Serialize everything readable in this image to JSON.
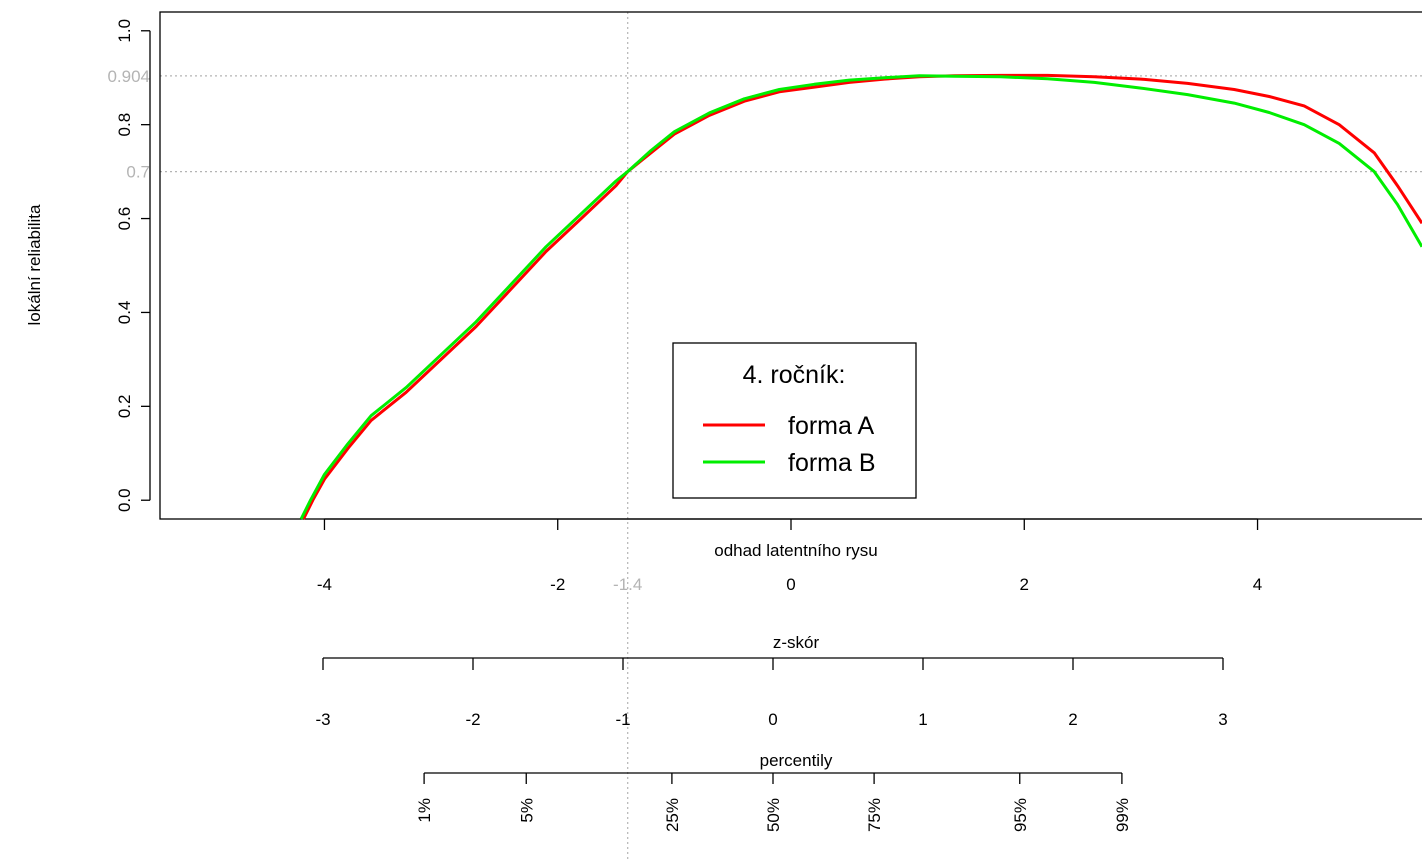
{
  "chart_data": {
    "type": "line",
    "title": "",
    "xlabel": "odhad latentního rysu",
    "ylabel": "lokální reliabilita",
    "xlim": [
      -5.41,
      5.41
    ],
    "ylim": [
      -0.04,
      1.04
    ],
    "x_ticks": [
      "-4",
      "-2",
      "0",
      "2",
      "4"
    ],
    "y_ticks": [
      "0.0",
      "0.2",
      "0.4",
      "0.6",
      "0.8",
      "1.0"
    ],
    "reference_lines": {
      "h": [
        {
          "value": 0.904,
          "label": "0.904"
        },
        {
          "value": 0.7,
          "label": "0.7"
        }
      ],
      "v": [
        {
          "value": -1.4,
          "label": "-1.4"
        }
      ]
    },
    "legend": {
      "title": "4. ročník:",
      "position": "bottom-center",
      "entries": [
        "forma A",
        "forma B"
      ]
    },
    "series": [
      {
        "name": "forma A",
        "color": "#ff0000",
        "points": [
          [
            -4.18,
            -0.04
          ],
          [
            -4.1,
            0.0
          ],
          [
            -4.0,
            0.045
          ],
          [
            -3.8,
            0.11
          ],
          [
            -3.6,
            0.17
          ],
          [
            -3.3,
            0.23
          ],
          [
            -3.0,
            0.3
          ],
          [
            -2.7,
            0.37
          ],
          [
            -2.4,
            0.45
          ],
          [
            -2.1,
            0.53
          ],
          [
            -1.8,
            0.6
          ],
          [
            -1.5,
            0.67
          ],
          [
            -1.4,
            0.7
          ],
          [
            -1.2,
            0.74
          ],
          [
            -1.0,
            0.78
          ],
          [
            -0.7,
            0.82
          ],
          [
            -0.4,
            0.85
          ],
          [
            -0.1,
            0.87
          ],
          [
            0.2,
            0.88
          ],
          [
            0.5,
            0.89
          ],
          [
            0.8,
            0.897
          ],
          [
            1.1,
            0.902
          ],
          [
            1.4,
            0.904
          ],
          [
            1.8,
            0.905
          ],
          [
            2.2,
            0.905
          ],
          [
            2.6,
            0.902
          ],
          [
            3.0,
            0.897
          ],
          [
            3.4,
            0.888
          ],
          [
            3.8,
            0.875
          ],
          [
            4.1,
            0.86
          ],
          [
            4.4,
            0.84
          ],
          [
            4.7,
            0.8
          ],
          [
            5.0,
            0.74
          ],
          [
            5.2,
            0.67
          ],
          [
            5.41,
            0.59
          ]
        ]
      },
      {
        "name": "forma B",
        "color": "#00ee00",
        "points": [
          [
            -4.2,
            -0.04
          ],
          [
            -4.12,
            0.0
          ],
          [
            -4.0,
            0.055
          ],
          [
            -3.8,
            0.12
          ],
          [
            -3.6,
            0.18
          ],
          [
            -3.3,
            0.24
          ],
          [
            -3.0,
            0.31
          ],
          [
            -2.7,
            0.38
          ],
          [
            -2.4,
            0.46
          ],
          [
            -2.1,
            0.54
          ],
          [
            -1.8,
            0.61
          ],
          [
            -1.5,
            0.68
          ],
          [
            -1.4,
            0.7
          ],
          [
            -1.2,
            0.745
          ],
          [
            -1.0,
            0.785
          ],
          [
            -0.7,
            0.825
          ],
          [
            -0.4,
            0.855
          ],
          [
            -0.1,
            0.875
          ],
          [
            0.2,
            0.886
          ],
          [
            0.5,
            0.895
          ],
          [
            0.8,
            0.9
          ],
          [
            1.1,
            0.904
          ],
          [
            1.4,
            0.903
          ],
          [
            1.8,
            0.902
          ],
          [
            2.2,
            0.898
          ],
          [
            2.6,
            0.89
          ],
          [
            3.0,
            0.878
          ],
          [
            3.4,
            0.864
          ],
          [
            3.8,
            0.846
          ],
          [
            4.1,
            0.826
          ],
          [
            4.4,
            0.8
          ],
          [
            4.7,
            0.76
          ],
          [
            5.0,
            0.7
          ],
          [
            5.2,
            0.63
          ],
          [
            5.41,
            0.54
          ]
        ]
      }
    ],
    "secondary_axes": [
      {
        "title": "z-skór",
        "tick_values": [
          -3,
          -2,
          -1,
          0,
          1,
          2,
          3
        ],
        "tick_labels": [
          "-3",
          "-2",
          "-1",
          "0",
          "1",
          "2",
          "3"
        ]
      },
      {
        "title": "percentily",
        "tick_values": [
          -2.326,
          -1.645,
          -0.674,
          0.0,
          0.674,
          1.645,
          2.326
        ],
        "tick_labels": [
          "1%",
          "5%",
          "25%",
          "50%",
          "75%",
          "95%",
          "99%"
        ]
      }
    ]
  }
}
